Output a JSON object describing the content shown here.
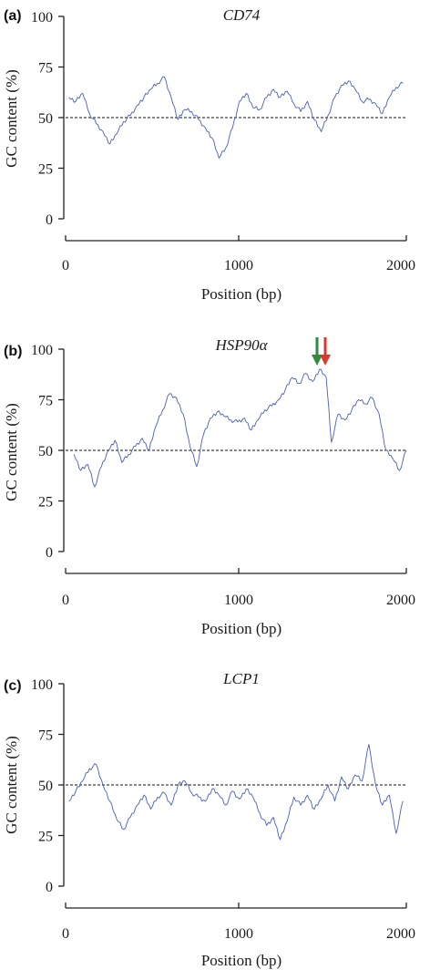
{
  "figure": {
    "panels": [
      {
        "label": "(a)",
        "title": "CD74",
        "ylabel": "GC content (%)",
        "xlabel": "Position (bp)"
      },
      {
        "label": "(b)",
        "title": "HSP90α",
        "ylabel": "GC content (%)",
        "xlabel": "Position (bp)"
      },
      {
        "label": "(c)",
        "title": "LCP1",
        "ylabel": "GC content (%)",
        "xlabel": "Position (bp)"
      }
    ]
  },
  "colors": {
    "series": "#4a5fb8",
    "reference": "#111111",
    "arrow_green": "#2e8b3a",
    "arrow_red": "#d93a2b"
  },
  "chart_data": [
    {
      "type": "line",
      "title": "CD74",
      "xlabel": "Position (bp)",
      "ylabel": "GC content (%)",
      "xlim": [
        0,
        2000
      ],
      "ylim": [
        0,
        100
      ],
      "xticks": [
        0,
        1000,
        2000
      ],
      "yticks": [
        0,
        25,
        50,
        75,
        100
      ],
      "grid": false,
      "reference_line": 50,
      "series": [
        {
          "x": [
            20,
            60,
            100,
            140,
            180,
            220,
            260,
            300,
            340,
            380,
            420,
            460,
            500,
            540,
            580,
            620,
            660,
            700,
            740,
            780,
            820,
            860,
            900,
            940,
            980,
            1020,
            1060,
            1100,
            1140,
            1180,
            1220,
            1260,
            1300,
            1340,
            1380,
            1420,
            1460,
            1500,
            1540,
            1580,
            1620,
            1660,
            1700,
            1740,
            1780,
            1820,
            1860,
            1900,
            1940,
            1980
          ],
          "y": [
            60,
            58,
            62,
            52,
            47,
            43,
            37,
            42,
            48,
            51,
            56,
            60,
            64,
            67,
            70,
            60,
            49,
            54,
            53,
            49,
            45,
            40,
            30,
            35,
            45,
            58,
            62,
            55,
            54,
            60,
            64,
            60,
            63,
            57,
            53,
            58,
            49,
            43,
            51,
            60,
            66,
            68,
            64,
            58,
            59,
            57,
            52,
            60,
            65,
            67
          ]
        }
      ]
    },
    {
      "type": "line",
      "title": "HSP90α",
      "xlabel": "Position (bp)",
      "ylabel": "GC content (%)",
      "xlim": [
        0,
        2000
      ],
      "ylim": [
        0,
        100
      ],
      "xticks": [
        0,
        1000,
        2000
      ],
      "yticks": [
        0,
        25,
        50,
        75,
        100
      ],
      "grid": false,
      "reference_line": 50,
      "series": [
        {
          "x": [
            50,
            90,
            130,
            170,
            210,
            250,
            290,
            330,
            370,
            410,
            450,
            490,
            530,
            570,
            610,
            650,
            690,
            730,
            770,
            810,
            850,
            890,
            930,
            970,
            1010,
            1050,
            1090,
            1130,
            1170,
            1210,
            1250,
            1290,
            1330,
            1370,
            1410,
            1450,
            1490,
            1530,
            1560,
            1600,
            1640,
            1680,
            1720,
            1760,
            1800,
            1840,
            1880,
            1920,
            1960,
            2000
          ],
          "y": [
            48,
            40,
            43,
            32,
            42,
            50,
            55,
            44,
            48,
            52,
            56,
            50,
            62,
            70,
            78,
            76,
            68,
            52,
            42,
            58,
            66,
            69,
            67,
            65,
            64,
            66,
            60,
            65,
            70,
            72,
            75,
            80,
            86,
            83,
            88,
            84,
            90,
            86,
            54,
            68,
            65,
            70,
            75,
            73,
            76,
            68,
            50,
            46,
            40,
            50
          ]
        }
      ]
    },
    {
      "type": "line",
      "title": "LCP1",
      "xlabel": "Position (bp)",
      "ylabel": "GC content (%)",
      "xlim": [
        0,
        2000
      ],
      "ylim": [
        0,
        100
      ],
      "xticks": [
        0,
        1000,
        2000
      ],
      "yticks": [
        0,
        25,
        50,
        75,
        100
      ],
      "grid": false,
      "reference_line": 50,
      "series": [
        {
          "x": [
            20,
            60,
            100,
            140,
            180,
            220,
            260,
            300,
            340,
            380,
            420,
            460,
            500,
            540,
            580,
            620,
            660,
            700,
            740,
            780,
            820,
            860,
            900,
            940,
            980,
            1020,
            1060,
            1100,
            1140,
            1180,
            1220,
            1260,
            1300,
            1340,
            1380,
            1420,
            1460,
            1500,
            1540,
            1580,
            1620,
            1660,
            1700,
            1740,
            1780,
            1820,
            1860,
            1900,
            1940,
            1980
          ],
          "y": [
            42,
            47,
            52,
            58,
            60,
            50,
            42,
            33,
            28,
            34,
            40,
            45,
            38,
            44,
            46,
            40,
            50,
            52,
            46,
            44,
            42,
            48,
            45,
            40,
            47,
            43,
            48,
            44,
            36,
            30,
            34,
            23,
            32,
            44,
            40,
            45,
            38,
            43,
            50,
            42,
            54,
            48,
            55,
            52,
            70,
            50,
            40,
            45,
            26,
            42
          ]
        }
      ]
    }
  ]
}
